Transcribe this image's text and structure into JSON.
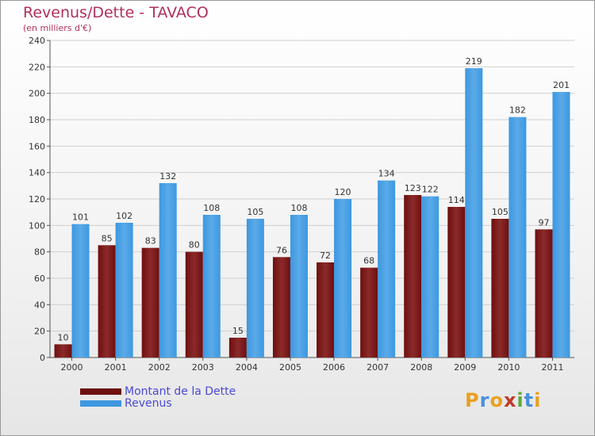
{
  "title": "Revenus/Dette - TAVACO",
  "subtitle": "(en milliers d'€)",
  "logo": {
    "text": "Proxiti",
    "letters": [
      "P",
      "r",
      "o",
      "x",
      "i",
      "t",
      "i"
    ],
    "colors": [
      "#e8a020",
      "#4a90d9",
      "#e8a020",
      "#c0392b",
      "#5aaa3c",
      "#4a90d9",
      "#e8a020"
    ]
  },
  "colors": {
    "dette": "#6e0f0f",
    "dette_light": "#8b2a2a",
    "revenus": "#3d98e0",
    "revenus_light": "#5aaae8",
    "title": "#b0305a",
    "legend_text": "#4a4ad0"
  },
  "legend": [
    {
      "label": "Montant de la Dette",
      "color": "#6e0f0f"
    },
    {
      "label": "Revenus",
      "color": "#3d98e0"
    }
  ],
  "chart_data": {
    "type": "bar",
    "title": "Revenus/Dette - TAVACO",
    "ylabel": "(en milliers d'€)",
    "xlabel": "",
    "ylim": [
      0,
      240
    ],
    "yticks": [
      0,
      20,
      40,
      60,
      80,
      100,
      120,
      140,
      160,
      180,
      200,
      220,
      240
    ],
    "grid": true,
    "categories": [
      "2000",
      "2001",
      "2002",
      "2003",
      "2004",
      "2005",
      "2006",
      "2007",
      "2008",
      "2009",
      "2010",
      "2011"
    ],
    "series": [
      {
        "name": "Montant de la Dette",
        "values": [
          10,
          85,
          83,
          80,
          15,
          76,
          72,
          68,
          123,
          114,
          105,
          97
        ]
      },
      {
        "name": "Revenus",
        "values": [
          101,
          102,
          132,
          108,
          105,
          108,
          120,
          134,
          122,
          219,
          182,
          201
        ]
      }
    ]
  }
}
